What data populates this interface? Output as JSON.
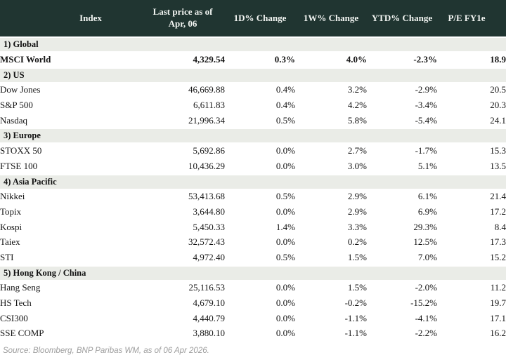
{
  "chart_data": {
    "type": "table",
    "columns": [
      "Index",
      "Last price as of\nApr, 06",
      "1D% Change",
      "1W% Change",
      "YTD% Change",
      "P/E FY1e"
    ],
    "sections": [
      {
        "label": "1) Global",
        "rows": [
          {
            "name": "MSCI World",
            "bold": true,
            "values": [
              "4,329.54",
              "0.3%",
              "4.0%",
              "-2.3%",
              "18.9"
            ],
            "tones": [
              "neu",
              "pos",
              "pos",
              "neg",
              "pos"
            ]
          }
        ]
      },
      {
        "label": "2) US",
        "rows": [
          {
            "name": "Dow Jones",
            "values": [
              "46,669.88",
              "0.4%",
              "3.2%",
              "-2.9%",
              "20.5"
            ],
            "tones": [
              "neu",
              "pos",
              "pos",
              "neg",
              "pos"
            ]
          },
          {
            "name": "S&P 500",
            "values": [
              "6,611.83",
              "0.4%",
              "4.2%",
              "-3.4%",
              "20.3"
            ],
            "tones": [
              "neu",
              "pos",
              "pos",
              "neg",
              "pos"
            ]
          },
          {
            "name": "Nasdaq",
            "values": [
              "21,996.34",
              "0.5%",
              "5.8%",
              "-5.4%",
              "24.1"
            ],
            "tones": [
              "neu",
              "pos",
              "pos",
              "neg",
              "pos"
            ]
          }
        ]
      },
      {
        "label": "3) Europe",
        "rows": [
          {
            "name": "STOXX 50",
            "values": [
              "5,692.86",
              "0.0%",
              "2.7%",
              "-1.7%",
              "15.3"
            ],
            "tones": [
              "neu",
              "neu",
              "pos",
              "neg",
              "pos"
            ]
          },
          {
            "name": "FTSE 100",
            "values": [
              "10,436.29",
              "0.0%",
              "3.0%",
              "5.1%",
              "13.5"
            ],
            "tones": [
              "neu",
              "neu",
              "pos",
              "pos",
              "pos"
            ]
          }
        ]
      },
      {
        "label": "4) Asia Pacific",
        "rows": [
          {
            "name": "Nikkei",
            "values": [
              "53,413.68",
              "0.5%",
              "2.9%",
              "6.1%",
              "21.4"
            ],
            "tones": [
              "neu",
              "pos",
              "pos",
              "pos",
              "pos"
            ]
          },
          {
            "name": "Topix",
            "values": [
              "3,644.80",
              "0.0%",
              "2.9%",
              "6.9%",
              "17.2"
            ],
            "tones": [
              "neu",
              "neg",
              "pos",
              "pos",
              "pos"
            ]
          },
          {
            "name": "Kospi",
            "values": [
              "5,450.33",
              "1.4%",
              "3.3%",
              "29.3%",
              "8.4"
            ],
            "tones": [
              "neu",
              "pos",
              "pos",
              "pos",
              "pos"
            ]
          },
          {
            "name": "Taiex",
            "values": [
              "32,572.43",
              "0.0%",
              "0.2%",
              "12.5%",
              "17.3"
            ],
            "tones": [
              "neu",
              "neu",
              "pos",
              "pos",
              "pos"
            ]
          },
          {
            "name": "STI",
            "values": [
              "4,972.40",
              "0.5%",
              "1.5%",
              "7.0%",
              "15.2"
            ],
            "tones": [
              "neu",
              "pos",
              "pos",
              "pos",
              "pos"
            ]
          }
        ]
      },
      {
        "label": "5) Hong Kong / China",
        "rows": [
          {
            "name": "Hang Seng",
            "values": [
              "25,116.53",
              "0.0%",
              "1.5%",
              "-2.0%",
              "11.2"
            ],
            "tones": [
              "neu",
              "neu",
              "pos",
              "neg",
              "pos"
            ]
          },
          {
            "name": "HS Tech",
            "values": [
              "4,679.10",
              "0.0%",
              "-0.2%",
              "-15.2%",
              "19.7"
            ],
            "tones": [
              "neu",
              "neu",
              "neg",
              "neg",
              "pos"
            ]
          },
          {
            "name": "CSI300",
            "values": [
              "4,440.79",
              "0.0%",
              "-1.1%",
              "-4.1%",
              "17.1"
            ],
            "tones": [
              "neu",
              "neu",
              "neg",
              "neg",
              "pos"
            ]
          },
          {
            "name": "SSE COMP",
            "values": [
              "3,880.10",
              "0.0%",
              "-1.1%",
              "-2.2%",
              "16.2"
            ],
            "tones": [
              "neu",
              "neu",
              "neg",
              "neg",
              "pos"
            ]
          }
        ]
      }
    ]
  },
  "footer": {
    "source": "Source: Bloomberg, BNP Paribas WM, as of 06 Apr 2026."
  },
  "colors": {
    "positive": "#027e2f",
    "negative": "#cf0a2c",
    "neutral": "#141414",
    "header_bg": "#203531",
    "header_text": "#f3f6f3",
    "section_bg": "#eaece7"
  }
}
